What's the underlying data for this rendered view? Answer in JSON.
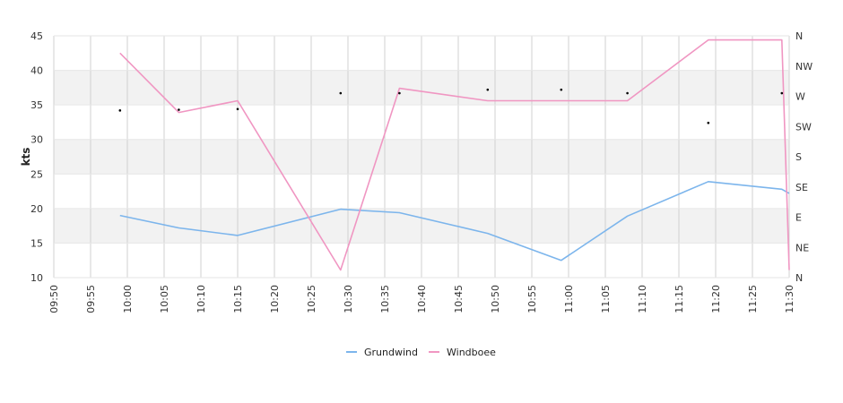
{
  "chart_data": {
    "type": "line",
    "ylabel": "kts",
    "ylim": [
      10,
      45
    ],
    "y_ticks": [
      "10",
      "15",
      "20",
      "25",
      "30",
      "35",
      "40",
      "45"
    ],
    "x_ticks": [
      "09:50",
      "09:55",
      "10:00",
      "10:05",
      "10:10",
      "10:15",
      "10:20",
      "10:25",
      "10:30",
      "10:35",
      "10:40",
      "10:45",
      "10:50",
      "10:55",
      "11:00",
      "11:05",
      "11:10",
      "11:15",
      "11:20",
      "11:25",
      "11:30"
    ],
    "xlim": [
      "09:50",
      "11:30"
    ],
    "right_ticks": [
      "N",
      "NW",
      "W",
      "SW",
      "S",
      "SE",
      "E",
      "NE",
      "N"
    ],
    "grid": true,
    "legend_position": "bottom",
    "series": [
      {
        "name": "Grundwind",
        "color": "#7cb5ec",
        "x": [
          "09:59",
          "10:07",
          "10:15",
          "10:29",
          "10:37",
          "10:49",
          "10:59",
          "11:08",
          "11:19",
          "11:29",
          "11:30"
        ],
        "values": [
          19.0,
          17.2,
          16.1,
          19.9,
          19.4,
          16.4,
          12.5,
          18.9,
          23.9,
          22.8,
          22.2
        ]
      },
      {
        "name": "Windboee",
        "color": "#f096c2",
        "x": [
          "09:59",
          "10:07",
          "10:15",
          "10:29",
          "10:37",
          "10:49",
          "10:59",
          "11:08",
          "11:19",
          "11:29",
          "11:30"
        ],
        "values": [
          42.5,
          33.9,
          35.6,
          11.1,
          37.4,
          35.6,
          35.6,
          35.6,
          44.4,
          44.4,
          11.1
        ]
      }
    ],
    "direction_points": {
      "x": [
        "09:59",
        "10:07",
        "10:15",
        "10:29",
        "10:37",
        "10:49",
        "10:59",
        "11:08",
        "11:19",
        "11:29"
      ],
      "values": [
        34.2,
        34.3,
        34.4,
        36.7,
        36.7,
        37.2,
        37.2,
        36.7,
        32.4,
        36.7
      ]
    }
  }
}
